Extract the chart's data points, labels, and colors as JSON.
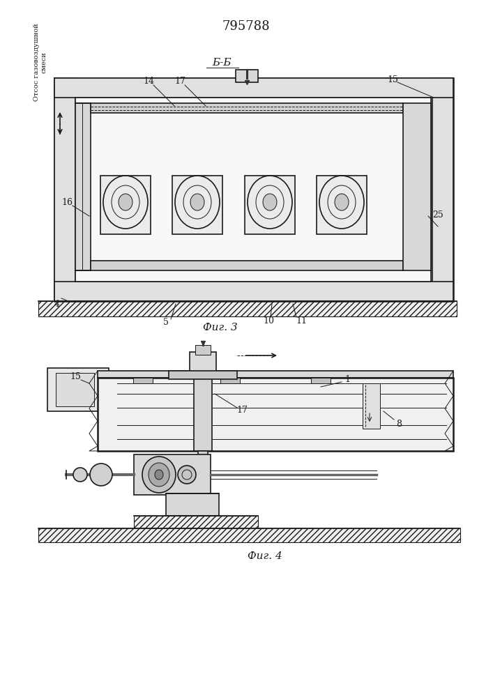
{
  "title": "795788",
  "bg_color": "#ffffff",
  "line_color": "#1a1a1a",
  "fig3_label": "Б-Б",
  "fig3_caption": "Фиг. 3",
  "fig4_caption": "Фиг. 4",
  "otsos_text": "Отсос газовоздушной\nсмеси"
}
